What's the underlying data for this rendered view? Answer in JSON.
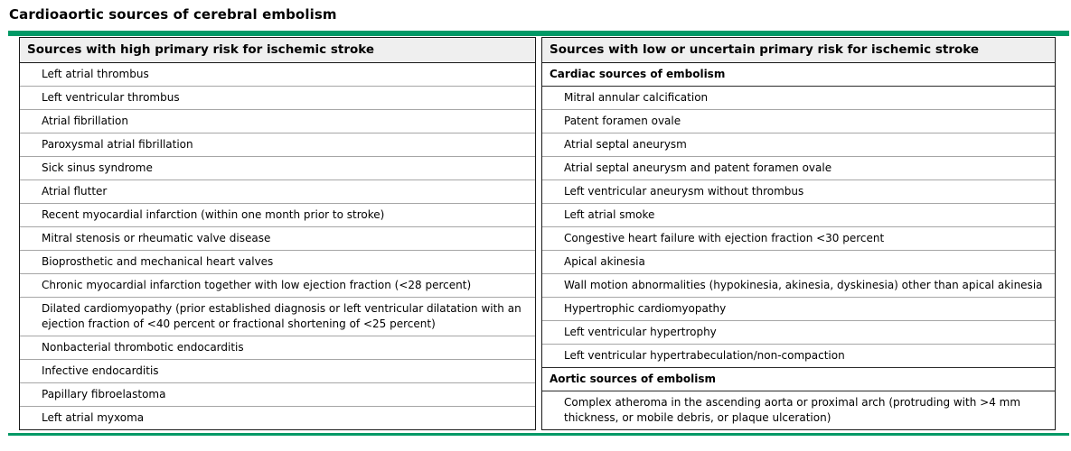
{
  "title": "Cardioaortic sources of cerebral embolism",
  "colors": {
    "accent_green": "#009966",
    "header_bg": "#efefef",
    "outer_border": "#1a1a1a",
    "row_border": "#a6a6a6"
  },
  "left_table": {
    "header": "Sources with high primary risk for ischemic stroke",
    "rows": [
      {
        "type": "item",
        "text": "Left atrial thrombus"
      },
      {
        "type": "item",
        "text": "Left ventricular thrombus"
      },
      {
        "type": "item",
        "text": "Atrial fibrillation"
      },
      {
        "type": "item",
        "text": "Paroxysmal atrial fibrillation"
      },
      {
        "type": "item",
        "text": "Sick sinus syndrome"
      },
      {
        "type": "item",
        "text": "Atrial flutter"
      },
      {
        "type": "item",
        "text": "Recent myocardial infarction (within one month prior to stroke)"
      },
      {
        "type": "item",
        "text": "Mitral stenosis or rheumatic valve disease"
      },
      {
        "type": "item",
        "text": "Bioprosthetic and mechanical heart valves"
      },
      {
        "type": "item",
        "text": "Chronic myocardial infarction together with low ejection fraction (<28 percent)"
      },
      {
        "type": "item",
        "text": "Dilated cardiomyopathy (prior established diagnosis or left ventricular dilatation with an ejection fraction of <40 percent or fractional shortening of <25 percent)"
      },
      {
        "type": "item",
        "text": "Nonbacterial thrombotic endocarditis"
      },
      {
        "type": "item",
        "text": "Infective endocarditis"
      },
      {
        "type": "item",
        "text": "Papillary fibroelastoma"
      },
      {
        "type": "item",
        "text": "Left atrial myxoma"
      }
    ]
  },
  "right_table": {
    "header": "Sources with low or uncertain primary risk for ischemic stroke",
    "rows": [
      {
        "type": "subheader",
        "text": "Cardiac sources of embolism"
      },
      {
        "type": "item",
        "text": "Mitral annular calcification"
      },
      {
        "type": "item",
        "text": "Patent foramen ovale"
      },
      {
        "type": "item",
        "text": "Atrial septal aneurysm"
      },
      {
        "type": "item",
        "text": "Atrial septal aneurysm and patent foramen ovale"
      },
      {
        "type": "item",
        "text": "Left ventricular aneurysm without thrombus"
      },
      {
        "type": "item",
        "text": "Left atrial smoke"
      },
      {
        "type": "item",
        "text": "Congestive heart failure with ejection fraction <30 percent"
      },
      {
        "type": "item",
        "text": "Apical akinesia"
      },
      {
        "type": "item",
        "text": "Wall motion abnormalities (hypokinesia, akinesia, dyskinesia) other than apical akinesia"
      },
      {
        "type": "item",
        "text": "Hypertrophic cardiomyopathy"
      },
      {
        "type": "item",
        "text": "Left ventricular hypertrophy"
      },
      {
        "type": "item",
        "text": "Left ventricular hypertrabeculation/non-compaction"
      },
      {
        "type": "subheader",
        "text": "Aortic sources of embolism"
      },
      {
        "type": "item",
        "text": "Complex atheroma in the ascending aorta or proximal arch (protruding with >4 mm thickness, or mobile debris, or plaque ulceration)"
      }
    ]
  }
}
